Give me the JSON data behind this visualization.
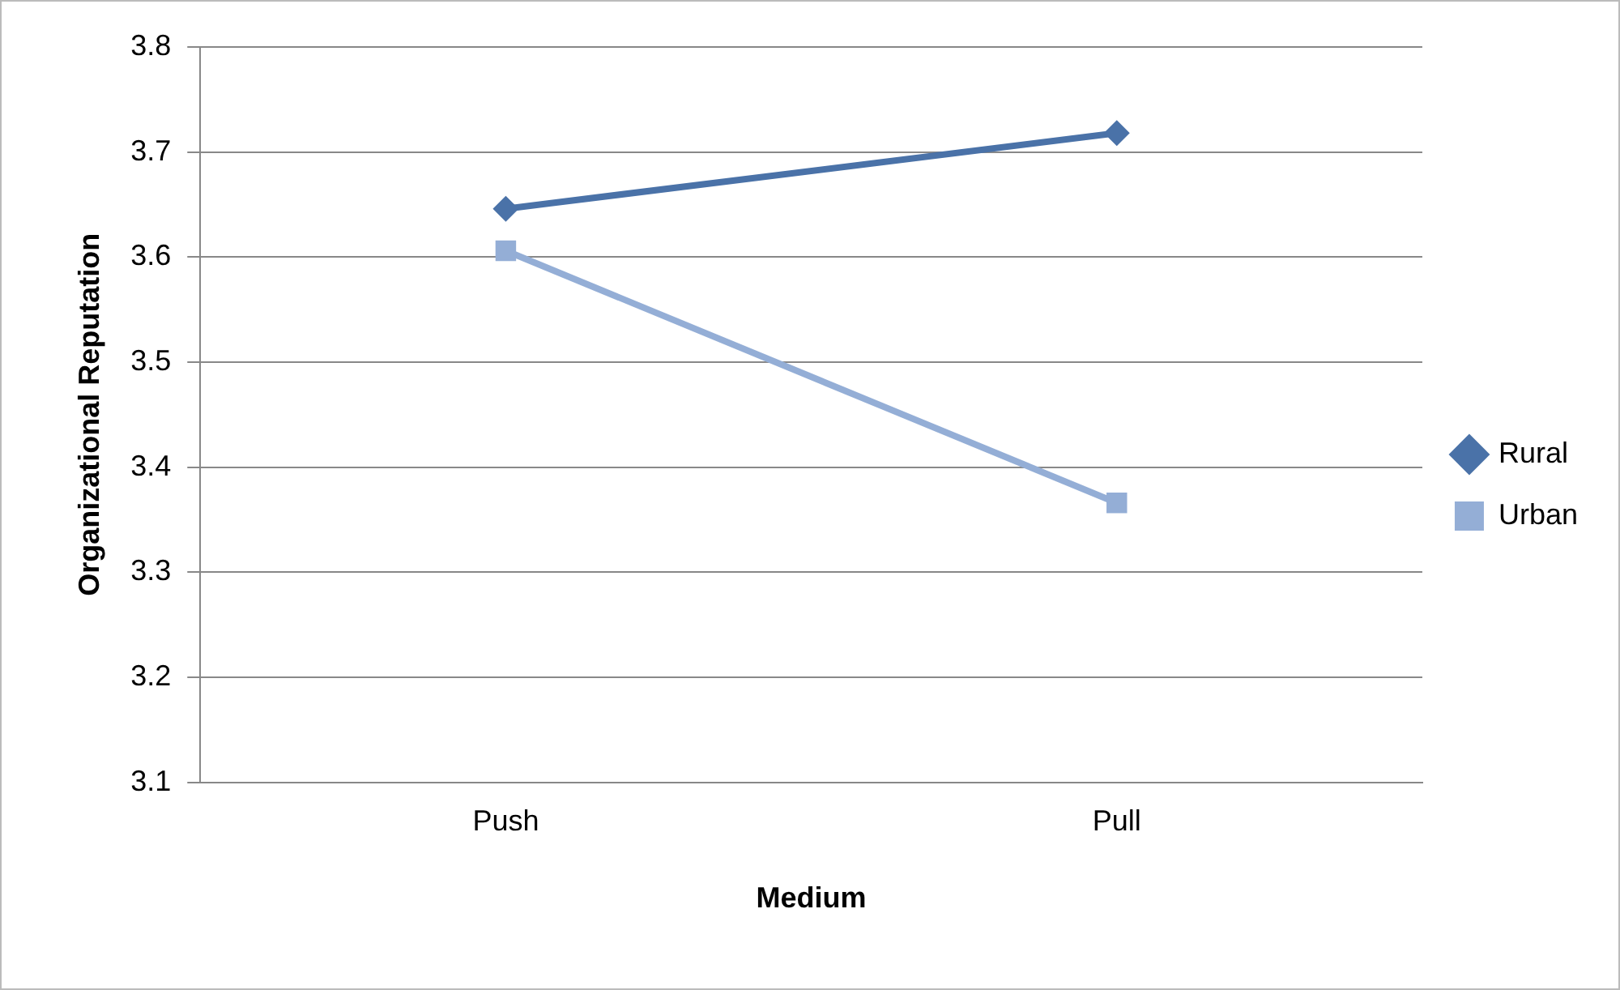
{
  "chart_data": {
    "type": "line",
    "xlabel": "Medium",
    "ylabel": "Organizational Reputation",
    "categories": [
      "Push",
      "Pull"
    ],
    "series": [
      {
        "name": "Rural",
        "color": "#4a72a8",
        "marker": "diamond",
        "values": [
          3.646,
          3.718
        ]
      },
      {
        "name": "Urban",
        "color": "#94aed6",
        "marker": "square",
        "values": [
          3.606,
          3.366
        ]
      }
    ],
    "ylim": [
      3.1,
      3.8
    ],
    "yticks": [
      3.1,
      3.2,
      3.3,
      3.4,
      3.5,
      3.6,
      3.7,
      3.8
    ],
    "grid": "y",
    "legend": "right",
    "line_style": "solid"
  }
}
